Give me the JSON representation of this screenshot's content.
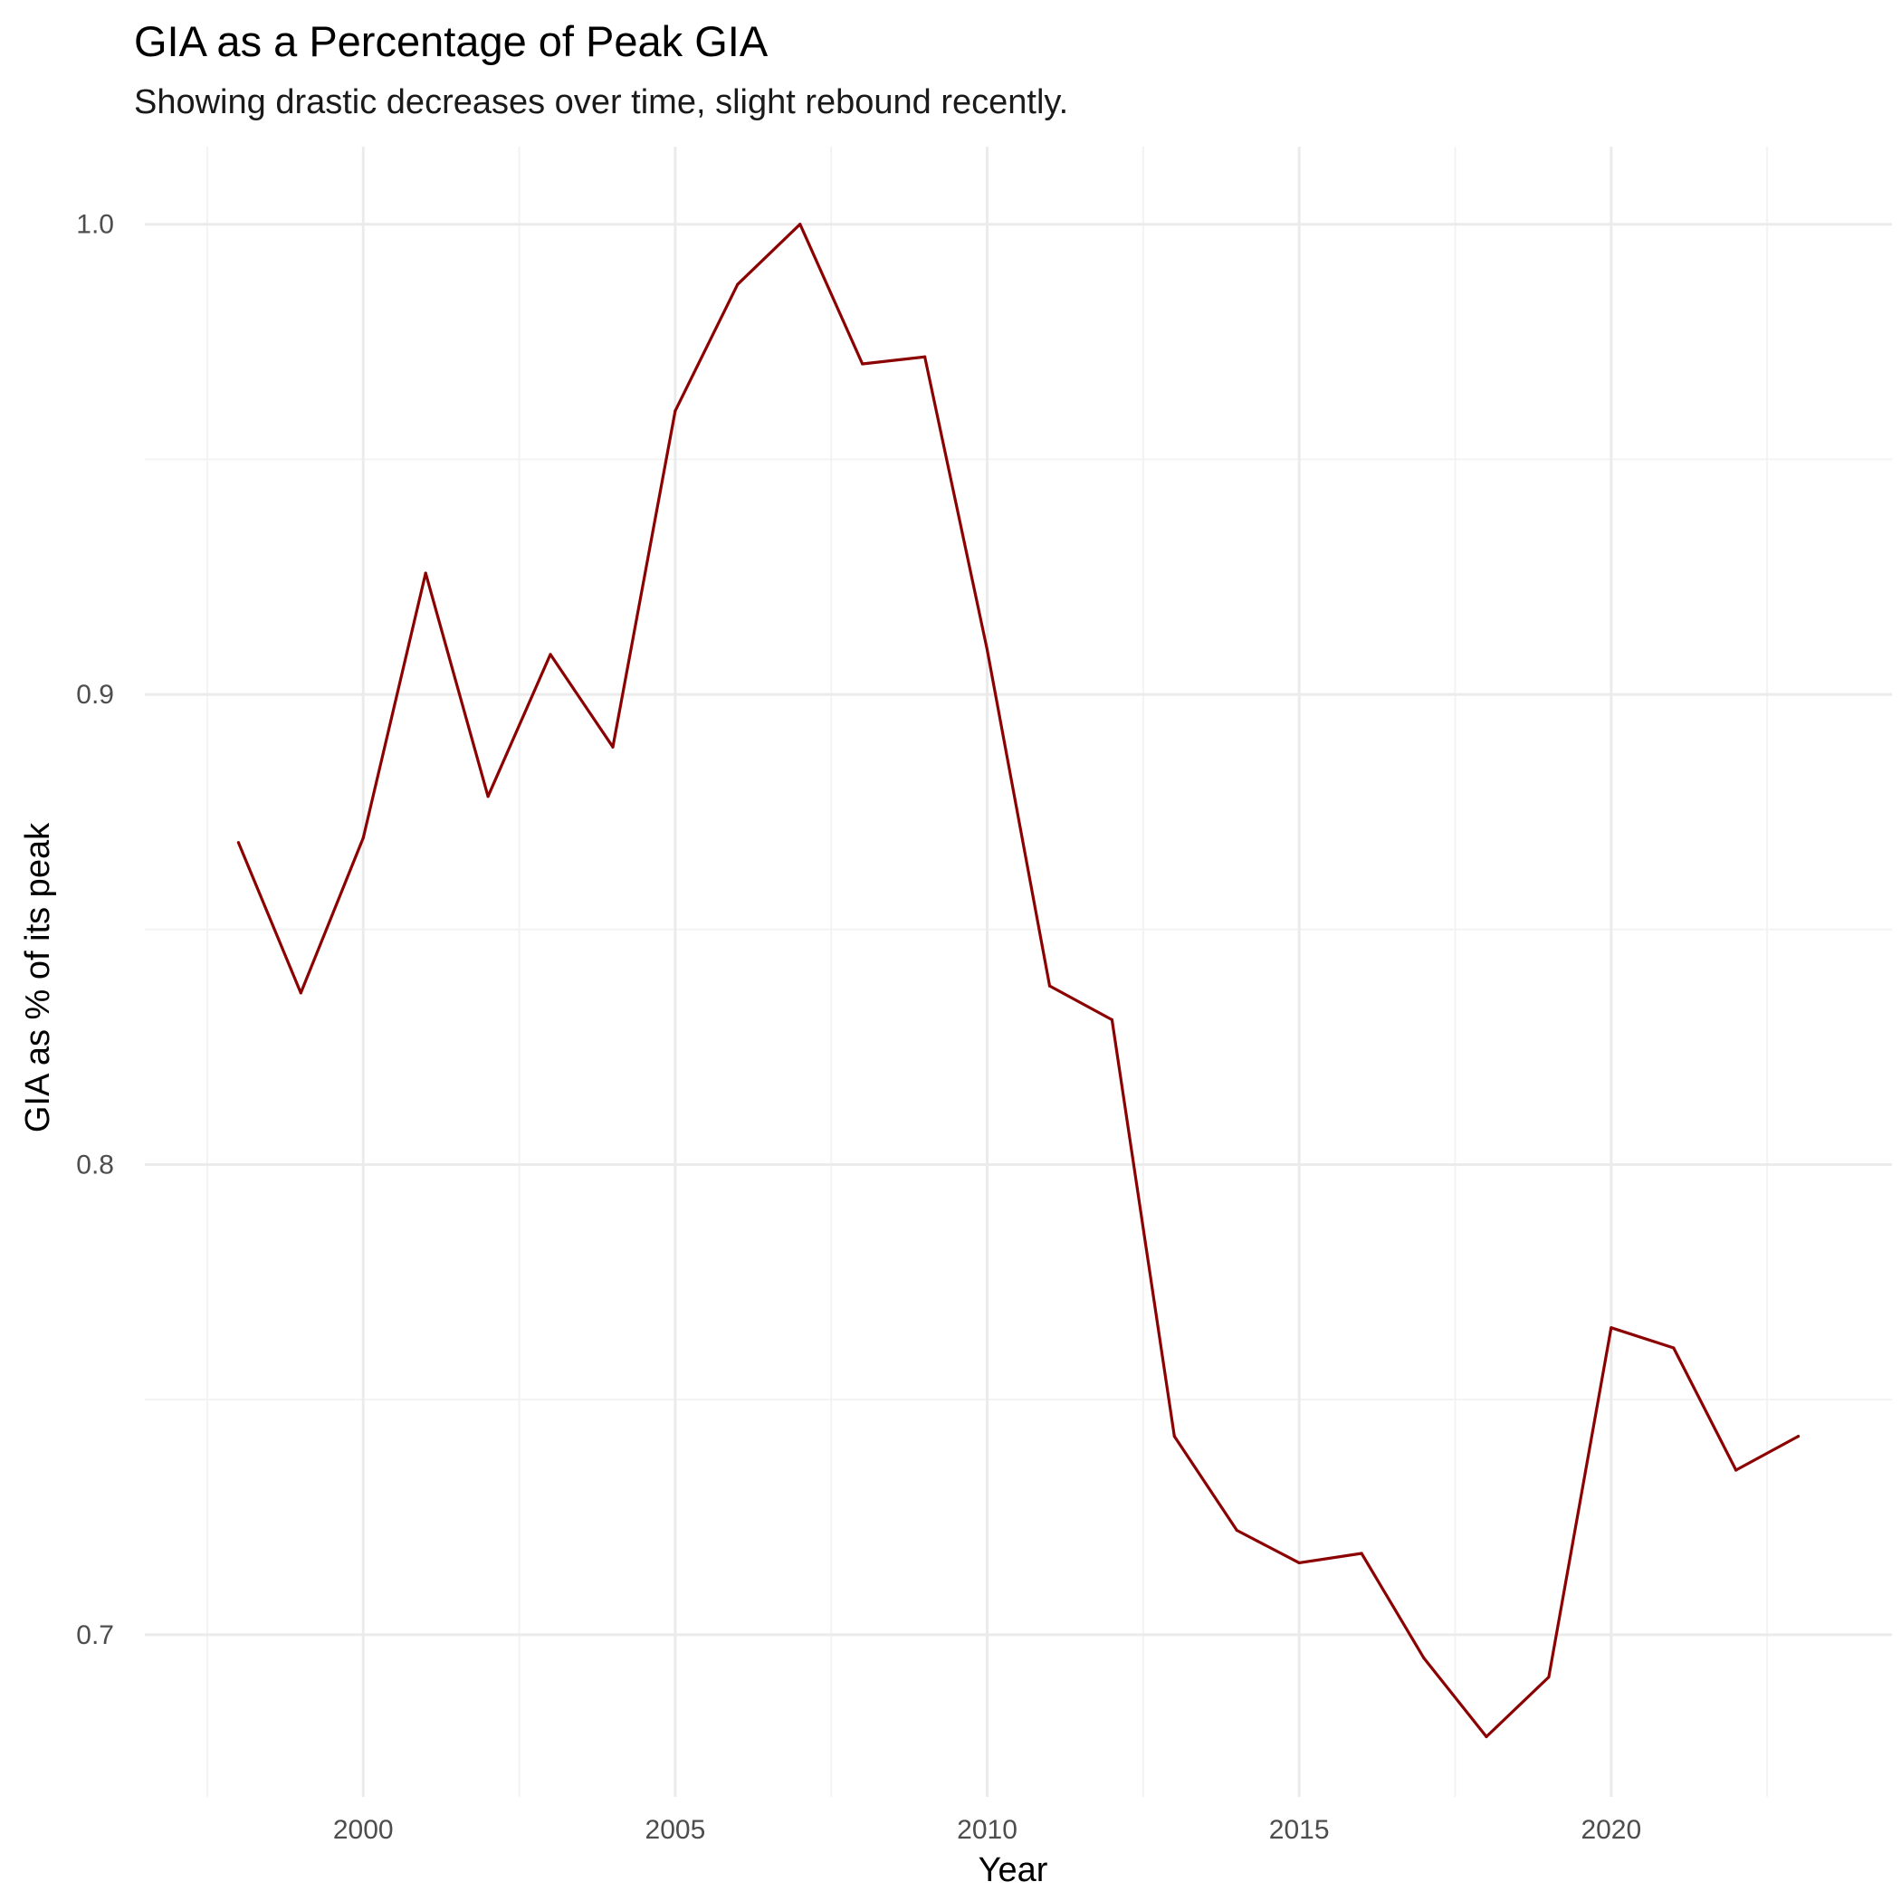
{
  "chart_data": {
    "type": "line",
    "title": "GIA as a Percentage of Peak GIA",
    "subtitle": "Showing drastic decreases over time, slight rebound recently.",
    "xlabel": "Year",
    "ylabel": "GIA as % of its peak",
    "xlim": [
      1996.5,
      2024.5
    ],
    "ylim": [
      0.6655,
      1.0165
    ],
    "x_ticks": [
      2000,
      2005,
      2010,
      2015,
      2020
    ],
    "y_ticks": [
      0.7,
      0.8,
      0.9,
      1.0
    ],
    "y_tick_labels": [
      "0.7",
      "0.8",
      "0.9",
      "1.0"
    ],
    "grid": true,
    "line_color": "#8B0000",
    "x": [
      1998,
      1999,
      2000,
      2001,
      2002,
      2003,
      2004,
      2005,
      2006,
      2007,
      2008,
      2009,
      2010,
      2011,
      2012,
      2013,
      2014,
      2015,
      2016,
      2017,
      2018,
      2019,
      2020,
      2021,
      2022,
      2023
    ],
    "y": [
      0.8685,
      0.8365,
      0.8695,
      0.9258,
      0.8783,
      0.9085,
      0.8888,
      0.9603,
      0.9872,
      1.0,
      0.9703,
      0.9718,
      0.9095,
      0.838,
      0.8308,
      0.7422,
      0.7222,
      0.7153,
      0.7173,
      0.695,
      0.6783,
      0.691,
      0.7653,
      0.761,
      0.735,
      0.7422
    ]
  }
}
